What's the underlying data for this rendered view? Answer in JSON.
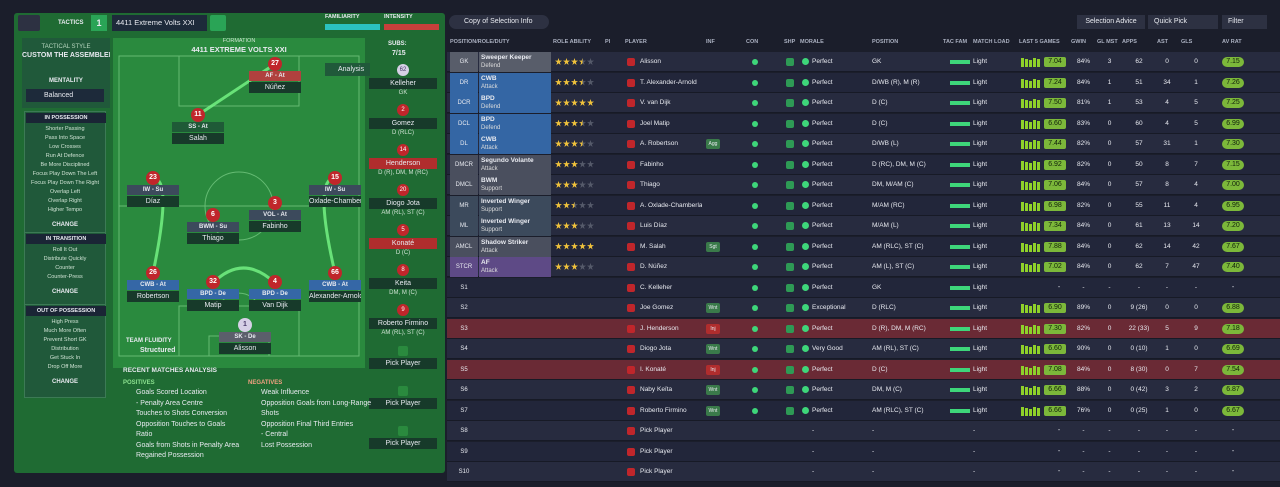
{
  "header": {
    "tactics": "TACTICS",
    "slot": "1",
    "tactic_name": "4411 Extreme Volts XXI",
    "familiarity": "FAMILIARITY",
    "intensity": "INTENSITY"
  },
  "style": {
    "label": "TACTICAL STYLE",
    "name": "CUSTOM THE ASSEMBLER",
    "mentality_label": "MENTALITY",
    "mentality": "Balanced",
    "phases": [
      {
        "title": "IN POSSESSION",
        "items": [
          "Shorter Passing",
          "Pass Into Space",
          "Low Crosses",
          "Run At Defence",
          "Be More Disciplined",
          "Focus Play Down The Left",
          "Focus Play Down The Right",
          "Overlap Left",
          "Overlap Right",
          "Higher Tempo"
        ],
        "button": "CHANGE"
      },
      {
        "title": "IN TRANSITION",
        "items": [
          "Roll It Out",
          "Distribute Quickly",
          "Counter",
          "Counter-Press"
        ],
        "button": "CHANGE"
      },
      {
        "title": "OUT OF POSSESSION",
        "items": [
          "High Press",
          "Much More Often",
          "Prevent Short GK",
          "Distribution",
          "Get Stuck In",
          "Drop Off More"
        ],
        "button": "CHANGE"
      }
    ]
  },
  "pitch": {
    "label": "FORMATION",
    "formation": "4411 EXTREME VOLTS XXI",
    "analysis": "Analysis",
    "fluidity_label": "TEAM FLUIDITY",
    "fluidity": "Structured",
    "players": [
      {
        "number": "27",
        "role": "AF - At",
        "name": "Núñez",
        "duty_color": "#b0413e"
      },
      {
        "number": "11",
        "role": "SS - At",
        "name": "Salah",
        "duty_color": "#1f5a37"
      },
      {
        "number": "23",
        "role": "IW - Su",
        "name": "Díaz",
        "duty_color": "#3c4a5c"
      },
      {
        "number": "15",
        "role": "IW - Su",
        "name": "Oxlade-Chamberlain",
        "duty_color": "#3c4a5c"
      },
      {
        "number": "6",
        "role": "BWM - Su",
        "name": "Thiago",
        "duty_color": "#3c4a5c"
      },
      {
        "number": "3",
        "role": "VOL - At",
        "name": "Fabinho",
        "duty_color": "#3c4a5c"
      },
      {
        "number": "26",
        "role": "CWB - At",
        "name": "Robertson",
        "duty_color": "#3567a6"
      },
      {
        "number": "32",
        "role": "BPD - De",
        "name": "Matip",
        "duty_color": "#3567a6"
      },
      {
        "number": "4",
        "role": "BPD - De",
        "name": "Van Dijk",
        "duty_color": "#3567a6"
      },
      {
        "number": "66",
        "role": "CWB - At",
        "name": "Alexander-Arnold",
        "duty_color": "#3567a6"
      },
      {
        "number": "1",
        "role": "SK - De",
        "name": "Alisson",
        "duty_color": "#5b5f6b"
      }
    ]
  },
  "subs": {
    "label": "SUBS:",
    "count": "7/15",
    "players": [
      {
        "number": "62",
        "name": "Kelleher",
        "position": "GK"
      },
      {
        "number": "2",
        "name": "Gomez",
        "position": "D (RLC)"
      },
      {
        "number": "14",
        "name": "Henderson",
        "position": "D (R), DM, M (RC)",
        "injured": true
      },
      {
        "number": "20",
        "name": "Diogo Jota",
        "position": "AM (RL), ST (C)"
      },
      {
        "number": "5",
        "name": "Konaté",
        "position": "D (C)",
        "injured": true
      },
      {
        "number": "8",
        "name": "Keita",
        "position": "DM, M (C)"
      },
      {
        "number": "9",
        "name": "Roberto Firmino",
        "position": "AM (RL), ST (C)"
      },
      {
        "name": "Pick Player"
      },
      {
        "name": "Pick Player"
      },
      {
        "name": "Pick Player"
      }
    ]
  },
  "analysis": {
    "title": "RECENT MATCHES ANALYSIS",
    "positives_label": "POSITIVES",
    "positives": [
      "Goals Scored Location",
      "- Penalty Area Centre",
      "Touches to Shots Conversion",
      "Opposition Touches to Goals",
      "Ratio",
      "Goals from Shots in Penalty Area",
      "Regained Possession"
    ],
    "negatives_label": "NEGATIVES",
    "negatives": [
      "Weak Influence",
      "Opposition Goals from Long-Range",
      "Shots",
      "Opposition Final Third Entries",
      "- Central",
      "Lost Possession"
    ]
  },
  "toolbar": {
    "view": "Copy of Selection Info",
    "advice": "Selection Advice",
    "quick_pick": "Quick Pick",
    "filter": "Filter"
  },
  "table": {
    "columns": [
      "POSITION/ROLE/DUTY",
      "ROLE ABILITY",
      "PI",
      "PLAYER",
      "INF",
      "CON",
      "SHP",
      "MORALE",
      "POSITION",
      "TAC FAM",
      "MATCH LOAD",
      "LAST 5 GAMES",
      "GWIN",
      "GL MST",
      "APPS",
      "AST",
      "GLS",
      "AV RAT"
    ],
    "rows": [
      {
        "slot": "GK",
        "role": "Sweeper Keeper",
        "duty": "Defend",
        "color": "#585d6a",
        "ability": 3.5,
        "player": "Alisson",
        "morale": "Perfect",
        "position": "GK",
        "load": "Light",
        "form": "7.04",
        "gwin": "84%",
        "glmst": "3",
        "apps": "62",
        "ast": "0",
        "gls": "0",
        "avrat": "7.15"
      },
      {
        "slot": "DR",
        "role": "CWB",
        "duty": "Attack",
        "color": "#3466a4",
        "ability": 3.5,
        "player": "T. Alexander-Arnold",
        "morale": "Perfect",
        "position": "D/WB (R), M (R)",
        "load": "Light",
        "form": "7.24",
        "gwin": "84%",
        "glmst": "1",
        "apps": "51",
        "ast": "34",
        "gls": "1",
        "avrat": "7.26"
      },
      {
        "slot": "DCR",
        "role": "BPD",
        "duty": "Defend",
        "color": "#3466a4",
        "ability": 5,
        "player": "V. van Dijk",
        "morale": "Perfect",
        "position": "D (C)",
        "load": "Light",
        "form": "7.50",
        "gwin": "81%",
        "glmst": "1",
        "apps": "53",
        "ast": "4",
        "gls": "5",
        "avrat": "7.25"
      },
      {
        "slot": "DCL",
        "role": "BPD",
        "duty": "Defend",
        "color": "#3466a4",
        "ability": 3.5,
        "player": "Joel Matip",
        "morale": "Perfect",
        "position": "D (C)",
        "load": "Light",
        "form": "6.60",
        "gwin": "83%",
        "glmst": "0",
        "apps": "60",
        "ast": "4",
        "gls": "5",
        "avrat": "6.99"
      },
      {
        "slot": "DL",
        "role": "CWB",
        "duty": "Attack",
        "color": "#3466a4",
        "ability": 3.5,
        "player": "A. Robertson",
        "inf": "Agg",
        "morale": "Perfect",
        "position": "D/WB (L)",
        "load": "Light",
        "form": "7.44",
        "gwin": "82%",
        "glmst": "0",
        "apps": "57",
        "ast": "31",
        "gls": "1",
        "avrat": "7.30"
      },
      {
        "slot": "DMCR",
        "role": "Segundo Volante",
        "duty": "Attack",
        "color": "#4a4f5e",
        "ability": 3,
        "player": "Fabinho",
        "morale": "Perfect",
        "position": "D (RC), DM, M (C)",
        "load": "Light",
        "form": "6.92",
        "gwin": "82%",
        "glmst": "0",
        "apps": "50",
        "ast": "8",
        "gls": "7",
        "avrat": "7.15"
      },
      {
        "slot": "DMCL",
        "role": "BWM",
        "duty": "Support",
        "color": "#4a4f5e",
        "ability": 3,
        "player": "Thiago",
        "morale": "Perfect",
        "position": "DM, M/AM (C)",
        "load": "Light",
        "form": "7.06",
        "gwin": "84%",
        "glmst": "0",
        "apps": "57",
        "ast": "8",
        "gls": "4",
        "avrat": "7.00"
      },
      {
        "slot": "MR",
        "role": "Inverted Winger",
        "duty": "Support",
        "color": "#3c4a5c",
        "ability": 2.5,
        "player": "A. Oxlade-Chamberlain",
        "morale": "Perfect",
        "position": "M/AM (RC)",
        "load": "Light",
        "form": "6.98",
        "gwin": "82%",
        "glmst": "0",
        "apps": "55",
        "ast": "11",
        "gls": "4",
        "avrat": "6.95"
      },
      {
        "slot": "ML",
        "role": "Inverted Winger",
        "duty": "Support",
        "color": "#3c4a5c",
        "ability": 3,
        "player": "Luis Díaz",
        "morale": "Perfect",
        "position": "M/AM (L)",
        "load": "Light",
        "form": "7.34",
        "gwin": "84%",
        "glmst": "0",
        "apps": "61",
        "ast": "13",
        "gls": "14",
        "avrat": "7.20"
      },
      {
        "slot": "AMCL",
        "role": "Shadow Striker",
        "duty": "Attack",
        "color": "#4a4f5e",
        "ability": 5,
        "player": "M. Salah",
        "inf": "Sgt",
        "morale": "Perfect",
        "position": "AM (RLC), ST (C)",
        "load": "Light",
        "form": "7.88",
        "gwin": "84%",
        "glmst": "0",
        "apps": "62",
        "ast": "14",
        "gls": "42",
        "avrat": "7.67"
      },
      {
        "slot": "STCR",
        "role": "AF",
        "duty": "Attack",
        "color": "#5e4a86",
        "ability": 3,
        "player": "D. Núñez",
        "morale": "Perfect",
        "position": "AM (L), ST (C)",
        "load": "Light",
        "form": "7.02",
        "gwin": "84%",
        "glmst": "0",
        "apps": "62",
        "ast": "7",
        "gls": "47",
        "avrat": "7.40"
      },
      {
        "slot": "S1",
        "player": "C. Kelleher",
        "morale": "Perfect",
        "position": "GK",
        "load": "Light",
        "form": "-",
        "gwin": "-",
        "glmst": "-",
        "apps": "-",
        "ast": "-",
        "gls": "-",
        "avrat": "-"
      },
      {
        "slot": "S2",
        "player": "Joe Gomez",
        "inf": "Wnt",
        "morale": "Exceptional",
        "position": "D (RLC)",
        "load": "Light",
        "form": "6.90",
        "gwin": "89%",
        "glmst": "0",
        "apps": "9 (26)",
        "ast": "0",
        "gls": "0",
        "avrat": "6.88"
      },
      {
        "slot": "S3",
        "player": "J. Henderson",
        "inf": "Inj",
        "injured": true,
        "morale": "Perfect",
        "position": "D (R), DM, M (RC)",
        "load": "Light",
        "form": "7.30",
        "gwin": "82%",
        "glmst": "0",
        "apps": "22 (33)",
        "ast": "5",
        "gls": "9",
        "avrat": "7.18"
      },
      {
        "slot": "S4",
        "player": "Diogo Jota",
        "inf": "Wnt",
        "morale": "Very Good",
        "position": "AM (RL), ST (C)",
        "load": "Light",
        "form": "6.60",
        "gwin": "90%",
        "glmst": "0",
        "apps": "0 (10)",
        "ast": "1",
        "gls": "0",
        "avrat": "6.69"
      },
      {
        "slot": "S5",
        "player": "I. Konaté",
        "inf": "Inj",
        "injured": true,
        "morale": "Perfect",
        "position": "D (C)",
        "load": "Light",
        "form": "7.08",
        "gwin": "84%",
        "glmst": "0",
        "apps": "8 (30)",
        "ast": "0",
        "gls": "7",
        "avrat": "7.54"
      },
      {
        "slot": "S6",
        "player": "Naby Keïta",
        "inf": "Wnt",
        "morale": "Perfect",
        "position": "DM, M (C)",
        "load": "Light",
        "form": "6.66",
        "gwin": "88%",
        "glmst": "0",
        "apps": "0 (42)",
        "ast": "3",
        "gls": "2",
        "avrat": "6.87"
      },
      {
        "slot": "S7",
        "player": "Roberto Firmino",
        "inf": "Wnt",
        "morale": "Perfect",
        "position": "AM (RLC), ST (C)",
        "load": "Light",
        "form": "6.66",
        "gwin": "76%",
        "glmst": "0",
        "apps": "0 (25)",
        "ast": "1",
        "gls": "0",
        "avrat": "6.67"
      },
      {
        "slot": "S8",
        "player": "Pick Player",
        "morale": "-",
        "position": "-",
        "load": "-",
        "form": "-",
        "gwin": "-",
        "glmst": "-",
        "apps": "-",
        "ast": "-",
        "gls": "-",
        "avrat": "-"
      },
      {
        "slot": "S9",
        "player": "Pick Player",
        "morale": "-",
        "position": "-",
        "load": "-",
        "form": "-",
        "gwin": "-",
        "glmst": "-",
        "apps": "-",
        "ast": "-",
        "gls": "-",
        "avrat": "-"
      },
      {
        "slot": "S10",
        "player": "Pick Player",
        "morale": "-",
        "position": "-",
        "load": "-",
        "form": "-",
        "gwin": "-",
        "glmst": "-",
        "apps": "-",
        "ast": "-",
        "gls": "-",
        "avrat": "-"
      }
    ]
  }
}
